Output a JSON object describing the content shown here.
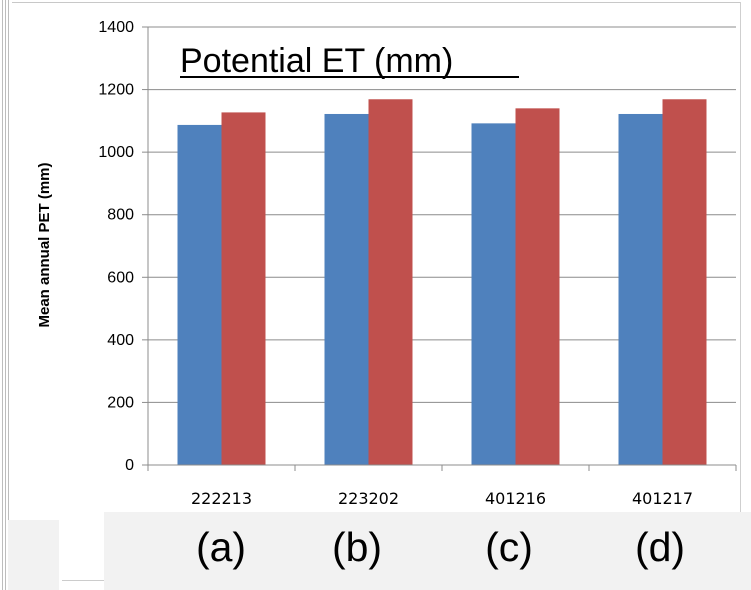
{
  "chart_data": {
    "type": "bar",
    "title": "Potential ET (mm)",
    "ylabel": "Mean annual  PET (mm)",
    "xlabel": "",
    "categories": [
      "222213",
      "223202",
      "401216",
      "401217"
    ],
    "series": [
      {
        "color": "#4F81BD",
        "values": [
          1087,
          1122,
          1092,
          1122
        ]
      },
      {
        "color": "#C0504D",
        "values": [
          1127,
          1169,
          1140,
          1169
        ]
      }
    ],
    "ylim": [
      0,
      1400
    ],
    "yticks": [
      0,
      200,
      400,
      600,
      800,
      1000,
      1200,
      1400
    ],
    "grid": true,
    "legend": "none"
  },
  "panel_letters": [
    "(a)",
    "(b)",
    "(c)",
    "(d)"
  ]
}
